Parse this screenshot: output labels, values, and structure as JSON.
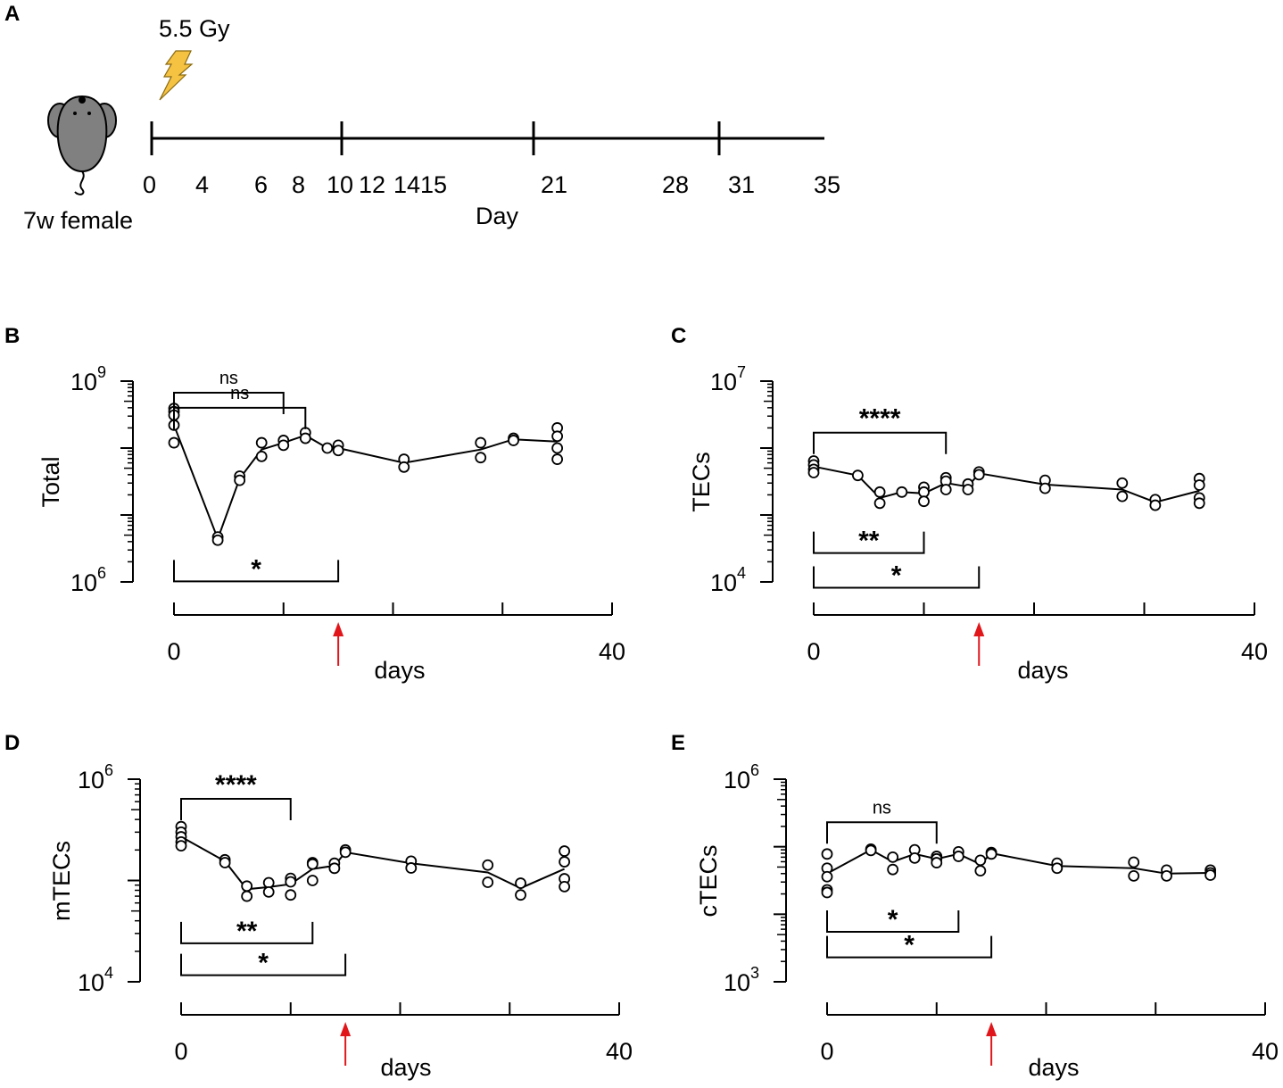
{
  "figure": {
    "panel_A": {
      "letter": "A",
      "dose_label": "5.5 Gy",
      "mouse_label": "7w female",
      "axis_label": "Day",
      "day_labels": [
        "0",
        "4",
        "6",
        "8",
        "10",
        "12",
        "1415",
        "21",
        "28",
        "31",
        "35"
      ],
      "accent_color": "#f5c242",
      "mouse_color": "#808080"
    },
    "arrow_color": "#e0161b"
  },
  "chart_data": [
    {
      "id": "B",
      "letter": "B",
      "type": "scatter",
      "ylabel": "Total",
      "xlabel": "days",
      "x_tick_labels": [
        "0",
        "40"
      ],
      "x_ticks": [
        0,
        10,
        20,
        30,
        40
      ],
      "xlim": [
        0,
        40
      ],
      "yscale": "log",
      "ylim": [
        1000000,
        1000000000
      ],
      "y_tick_labels": [
        {
          "base": "10",
          "exp": "6",
          "value": 1000000
        },
        {
          "base": "10",
          "exp": "9",
          "value": 1000000000
        }
      ],
      "points": [
        {
          "x": 0,
          "values": [
            390000000,
            350000000,
            310000000,
            220000000,
            120000000
          ]
        },
        {
          "x": 4,
          "values": [
            4700000,
            4200000
          ]
        },
        {
          "x": 6,
          "values": [
            38000000,
            33000000
          ]
        },
        {
          "x": 8,
          "values": [
            120000000,
            75000000
          ]
        },
        {
          "x": 10,
          "values": [
            130000000,
            110000000
          ]
        },
        {
          "x": 12,
          "values": [
            170000000,
            140000000
          ]
        },
        {
          "x": 14,
          "values": [
            100000000
          ]
        },
        {
          "x": 15,
          "values": [
            110000000,
            92000000
          ]
        },
        {
          "x": 21,
          "values": [
            68000000,
            52000000
          ]
        },
        {
          "x": 28,
          "values": [
            120000000,
            72000000
          ]
        },
        {
          "x": 31,
          "values": [
            140000000,
            130000000
          ]
        },
        {
          "x": 35,
          "values": [
            200000000,
            150000000,
            100000000,
            68000000
          ]
        }
      ],
      "mean_line": [
        [
          0,
          220000000
        ],
        [
          4,
          4400000
        ],
        [
          6,
          35000000
        ],
        [
          8,
          95000000
        ],
        [
          10,
          120000000
        ],
        [
          12,
          155000000
        ],
        [
          14,
          100000000
        ],
        [
          15,
          100000000
        ],
        [
          21,
          60000000
        ],
        [
          28,
          95000000
        ],
        [
          31,
          135000000
        ],
        [
          35,
          125000000
        ]
      ],
      "annotations": [
        {
          "label": "ns",
          "from": 0,
          "to": 12,
          "y": 400000000,
          "dir": "up",
          "bold": false
        },
        {
          "label": "ns",
          "from": 0,
          "to": 10,
          "y": 670000000,
          "dir": "up",
          "bold": false
        },
        {
          "label": "*",
          "from": 0,
          "to": 15,
          "y": 1020000,
          "dir": "down",
          "bold": true
        }
      ],
      "arrow_day": 15
    },
    {
      "id": "C",
      "letter": "C",
      "type": "scatter",
      "ylabel": "TECs",
      "xlabel": "days",
      "x_tick_labels": [
        "0",
        "40"
      ],
      "x_ticks": [
        0,
        10,
        20,
        30,
        40
      ],
      "xlim": [
        0,
        40
      ],
      "yscale": "log",
      "ylim": [
        10000,
        10000000
      ],
      "y_tick_labels": [
        {
          "base": "10",
          "exp": "4",
          "value": 10000
        },
        {
          "base": "10",
          "exp": "7",
          "value": 10000000
        }
      ],
      "points": [
        {
          "x": 0,
          "values": [
            640000,
            560000,
            480000,
            430000
          ]
        },
        {
          "x": 4,
          "values": [
            390000
          ]
        },
        {
          "x": 6,
          "values": [
            220000,
            150000
          ]
        },
        {
          "x": 8,
          "values": [
            220000
          ]
        },
        {
          "x": 10,
          "values": [
            260000,
            220000,
            160000
          ]
        },
        {
          "x": 12,
          "values": [
            360000,
            320000,
            240000
          ]
        },
        {
          "x": 14,
          "values": [
            290000,
            240000
          ]
        },
        {
          "x": 15,
          "values": [
            440000,
            400000
          ]
        },
        {
          "x": 21,
          "values": [
            330000,
            250000
          ]
        },
        {
          "x": 28,
          "values": [
            300000,
            190000
          ]
        },
        {
          "x": 31,
          "values": [
            170000,
            140000
          ]
        },
        {
          "x": 35,
          "values": [
            350000,
            280000,
            180000,
            150000
          ]
        }
      ],
      "mean_line": [
        [
          0,
          530000
        ],
        [
          4,
          390000
        ],
        [
          6,
          180000
        ],
        [
          8,
          220000
        ],
        [
          10,
          210000
        ],
        [
          12,
          300000
        ],
        [
          14,
          265000
        ],
        [
          15,
          420000
        ],
        [
          21,
          285000
        ],
        [
          28,
          240000
        ],
        [
          31,
          155000
        ],
        [
          35,
          230000
        ]
      ],
      "annotations": [
        {
          "label": "****",
          "from": 0,
          "to": 12,
          "y": 1700000,
          "dir": "up",
          "bold": true
        },
        {
          "label": "**",
          "from": 0,
          "to": 10,
          "y": 27000,
          "dir": "down",
          "bold": true
        },
        {
          "label": "*",
          "from": 0,
          "to": 15,
          "y": 8200,
          "dir": "down",
          "bold": true
        }
      ],
      "arrow_day": 15
    },
    {
      "id": "D",
      "letter": "D",
      "type": "scatter",
      "ylabel": "mTECs",
      "xlabel": "days",
      "x_tick_labels": [
        "0",
        "40"
      ],
      "x_ticks": [
        0,
        10,
        20,
        30,
        40
      ],
      "xlim": [
        0,
        40
      ],
      "yscale": "log",
      "ylim": [
        10000,
        1000000
      ],
      "y_tick_labels": [
        {
          "base": "10",
          "exp": "4",
          "value": 10000
        },
        {
          "base": "10",
          "exp": "6",
          "value": 1000000
        }
      ],
      "points": [
        {
          "x": 0,
          "values": [
            340000,
            300000,
            270000,
            240000,
            220000
          ]
        },
        {
          "x": 4,
          "values": [
            160000,
            150000
          ]
        },
        {
          "x": 6,
          "values": [
            88000,
            70000
          ]
        },
        {
          "x": 8,
          "values": [
            95000,
            77000
          ]
        },
        {
          "x": 10,
          "values": [
            105000,
            97000,
            72000
          ]
        },
        {
          "x": 12,
          "values": [
            150000,
            145000,
            100000
          ]
        },
        {
          "x": 14,
          "values": [
            148000,
            132000
          ]
        },
        {
          "x": 15,
          "values": [
            200000,
            190000
          ]
        },
        {
          "x": 21,
          "values": [
            155000,
            133000
          ]
        },
        {
          "x": 28,
          "values": [
            142000,
            96000
          ]
        },
        {
          "x": 31,
          "values": [
            94000,
            72000
          ]
        },
        {
          "x": 35,
          "values": [
            195000,
            153000,
            104000,
            87000
          ]
        }
      ],
      "mean_line": [
        [
          0,
          270000
        ],
        [
          4,
          155000
        ],
        [
          6,
          82000
        ],
        [
          8,
          86000
        ],
        [
          10,
          92000
        ],
        [
          12,
          130000
        ],
        [
          14,
          140000
        ],
        [
          15,
          190000
        ],
        [
          21,
          148000
        ],
        [
          28,
          120000
        ],
        [
          31,
          84000
        ],
        [
          35,
          130000
        ]
      ],
      "annotations": [
        {
          "label": "****",
          "from": 0,
          "to": 10,
          "y": 640000,
          "dir": "up",
          "bold": true
        },
        {
          "label": "**",
          "from": 0,
          "to": 12,
          "y": 24000,
          "dir": "down",
          "bold": true
        },
        {
          "label": "*",
          "from": 0,
          "to": 15,
          "y": 11600,
          "dir": "down",
          "bold": true
        }
      ],
      "arrow_day": 15
    },
    {
      "id": "E",
      "letter": "E",
      "type": "scatter",
      "ylabel": "cTECs",
      "xlabel": "days",
      "x_tick_labels": [
        "0",
        "40"
      ],
      "x_ticks": [
        0,
        10,
        20,
        30,
        40
      ],
      "xlim": [
        0,
        40
      ],
      "yscale": "log",
      "ylim": [
        1000,
        1000000
      ],
      "y_tick_labels": [
        {
          "base": "10",
          "exp": "3",
          "value": 1000
        },
        {
          "base": "10",
          "exp": "6",
          "value": 1000000
        }
      ],
      "points": [
        {
          "x": 0,
          "values": [
            78000,
            48000,
            36000,
            23000,
            21000
          ]
        },
        {
          "x": 4,
          "values": [
            92000,
            88000
          ]
        },
        {
          "x": 6,
          "values": [
            70000,
            46000
          ]
        },
        {
          "x": 8,
          "values": [
            90000,
            68000
          ]
        },
        {
          "x": 10,
          "values": [
            72000,
            66000,
            58000
          ]
        },
        {
          "x": 12,
          "values": [
            84000,
            72000
          ]
        },
        {
          "x": 14,
          "values": [
            63000,
            44000
          ]
        },
        {
          "x": 15,
          "values": [
            82000,
            78000
          ]
        },
        {
          "x": 21,
          "values": [
            57000,
            48000
          ]
        },
        {
          "x": 28,
          "values": [
            59000,
            37000
          ]
        },
        {
          "x": 31,
          "values": [
            45000,
            37000
          ]
        },
        {
          "x": 35,
          "values": [
            45000,
            41000,
            38000
          ]
        }
      ],
      "mean_line": [
        [
          0,
          40000
        ],
        [
          4,
          90000
        ],
        [
          6,
          60000
        ],
        [
          8,
          78000
        ],
        [
          10,
          66000
        ],
        [
          12,
          78000
        ],
        [
          14,
          55000
        ],
        [
          15,
          80000
        ],
        [
          21,
          52000
        ],
        [
          28,
          48000
        ],
        [
          31,
          40000
        ],
        [
          35,
          41000
        ]
      ],
      "annotations": [
        {
          "label": "ns",
          "from": 0,
          "to": 10,
          "y": 230000,
          "dir": "up",
          "bold": false
        },
        {
          "label": "*",
          "from": 0,
          "to": 12,
          "y": 5500,
          "dir": "down",
          "bold": true
        },
        {
          "label": "*",
          "from": 0,
          "to": 15,
          "y": 2300,
          "dir": "down",
          "bold": true
        }
      ],
      "arrow_day": 15
    }
  ]
}
